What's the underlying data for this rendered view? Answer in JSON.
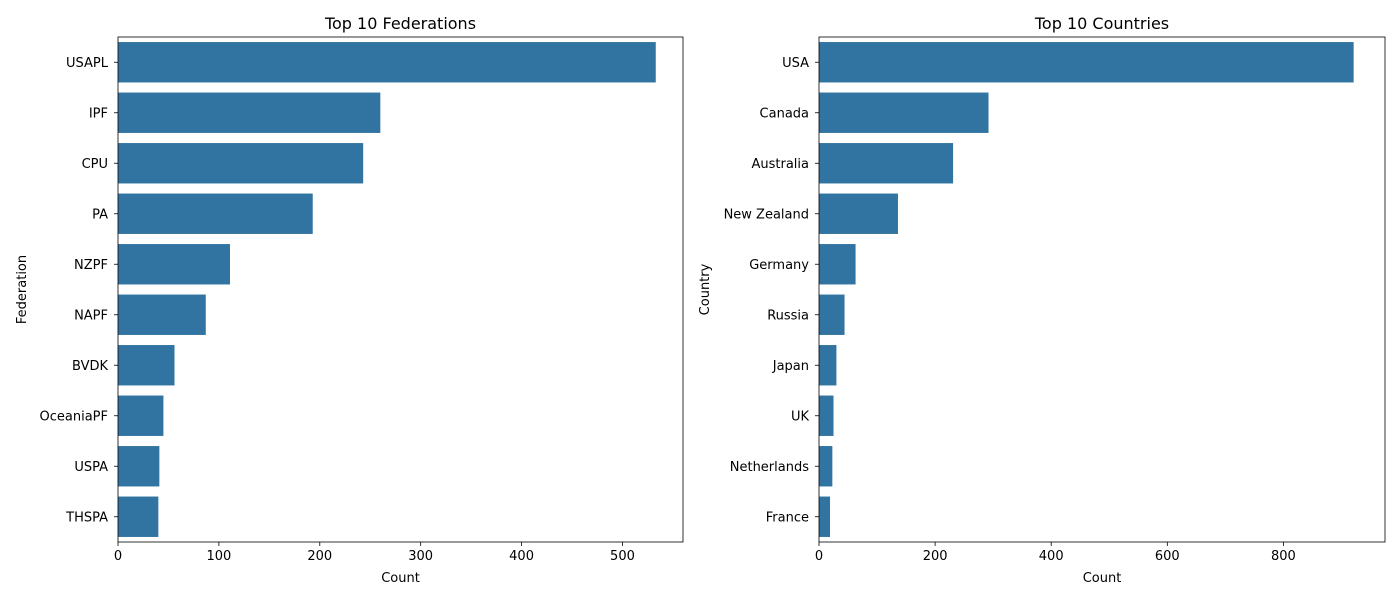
{
  "chart_data": [
    {
      "type": "bar",
      "orientation": "horizontal",
      "title": "Top 10 Federations",
      "xlabel": "Count",
      "ylabel": "Federation",
      "categories": [
        "USAPL",
        "IPF",
        "CPU",
        "PA",
        "NZPF",
        "NAPF",
        "BVDK",
        "OceaniaPF",
        "USPA",
        "THSPA"
      ],
      "values": [
        533,
        260,
        243,
        193,
        111,
        87,
        56,
        45,
        41,
        40
      ],
      "xlim": [
        0,
        560
      ],
      "xticks": [
        0,
        100,
        200,
        300,
        400,
        500
      ],
      "grid": false,
      "color": "#3274a1"
    },
    {
      "type": "bar",
      "orientation": "horizontal",
      "title": "Top 10 Countries",
      "xlabel": "Count",
      "ylabel": "Country",
      "categories": [
        "USA",
        "Canada",
        "Australia",
        "New Zealand",
        "Germany",
        "Russia",
        "Japan",
        "UK",
        "Netherlands",
        "France"
      ],
      "values": [
        921,
        292,
        231,
        136,
        63,
        44,
        30,
        25,
        23,
        19
      ],
      "xlim": [
        0,
        975
      ],
      "xticks": [
        0,
        200,
        400,
        600,
        800
      ],
      "grid": false,
      "color": "#3274a1"
    }
  ]
}
